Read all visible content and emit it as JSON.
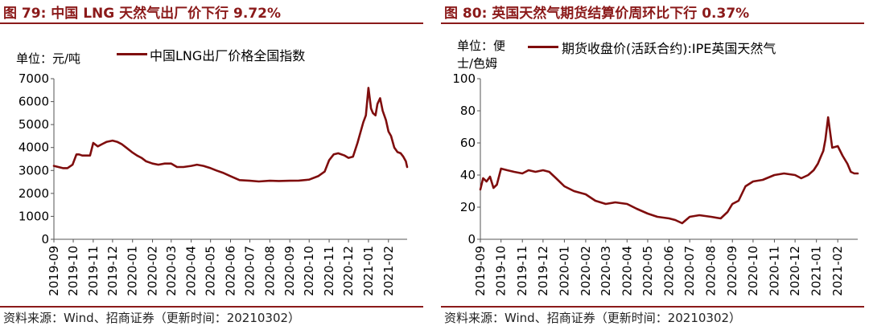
{
  "source": "资料来源：Wind、招商证券（更新时间：20210302）",
  "charts": [
    {
      "title": "图 79:  中国 LNG 天然气出厂价下行 9.72%",
      "unit_label": "单位：元/吨",
      "legend": "中国LNG出厂价格全国指数",
      "color": "#7f0d0d"
    },
    {
      "title": "图 80:  英国天然气期货结算价周环比下行 0.37%",
      "unit_label_line1": "单位：便",
      "unit_label_line2": "士/色姆",
      "legend": "期货收盘价(活跃合约):IPE英国天然气",
      "color": "#7f0d0d"
    }
  ],
  "chart_data": [
    {
      "type": "line",
      "title": "图 79:  中国 LNG 天然气出厂价下行 9.72%",
      "ylabel": "单位：元/吨",
      "ylim": [
        0,
        7000
      ],
      "yticks": [
        0,
        1000,
        2000,
        3000,
        4000,
        5000,
        6000,
        7000
      ],
      "xlim": [
        "2019-09-01",
        "2021-03-02"
      ],
      "xticks": [
        "2019-09",
        "2019-10",
        "2019-11",
        "2019-12",
        "2020-01",
        "2020-02",
        "2020-03",
        "2020-04",
        "2020-05",
        "2020-06",
        "2020-07",
        "2020-08",
        "2020-09",
        "2020-10",
        "2020-11",
        "2020-12",
        "2021-01",
        "2021-02"
      ],
      "legend_position": "top",
      "grid": false,
      "series": [
        {
          "name": "中国LNG出厂价格全国指数",
          "x": [
            "2019-09-01",
            "2019-09-08",
            "2019-09-15",
            "2019-09-22",
            "2019-09-30",
            "2019-10-06",
            "2019-10-10",
            "2019-10-15",
            "2019-10-20",
            "2019-10-27",
            "2019-11-01",
            "2019-11-08",
            "2019-11-15",
            "2019-11-22",
            "2019-12-01",
            "2019-12-08",
            "2019-12-15",
            "2019-12-22",
            "2019-12-31",
            "2020-01-08",
            "2020-01-15",
            "2020-01-22",
            "2020-02-01",
            "2020-02-10",
            "2020-02-20",
            "2020-03-01",
            "2020-03-10",
            "2020-03-20",
            "2020-04-01",
            "2020-04-10",
            "2020-04-20",
            "2020-05-01",
            "2020-05-10",
            "2020-05-20",
            "2020-06-01",
            "2020-06-15",
            "2020-07-01",
            "2020-07-15",
            "2020-08-01",
            "2020-08-15",
            "2020-09-01",
            "2020-09-15",
            "2020-10-01",
            "2020-10-15",
            "2020-10-25",
            "2020-11-01",
            "2020-11-08",
            "2020-11-15",
            "2020-11-25",
            "2020-12-01",
            "2020-12-08",
            "2020-12-15",
            "2020-12-20",
            "2020-12-24",
            "2020-12-28",
            "2021-01-01",
            "2021-01-05",
            "2021-01-08",
            "2021-01-12",
            "2021-01-15",
            "2021-01-19",
            "2021-01-23",
            "2021-01-28",
            "2021-02-01",
            "2021-02-05",
            "2021-02-10",
            "2021-02-15",
            "2021-02-20",
            "2021-02-24",
            "2021-02-28",
            "2021-03-02"
          ],
          "values": [
            3200,
            3150,
            3100,
            3100,
            3250,
            3700,
            3700,
            3650,
            3650,
            3650,
            4200,
            4050,
            4150,
            4250,
            4300,
            4250,
            4150,
            4000,
            3800,
            3650,
            3550,
            3400,
            3300,
            3250,
            3300,
            3300,
            3150,
            3150,
            3200,
            3250,
            3200,
            3100,
            3000,
            2900,
            2750,
            2580,
            2550,
            2520,
            2550,
            2540,
            2550,
            2560,
            2600,
            2750,
            2950,
            3450,
            3700,
            3750,
            3650,
            3550,
            3600,
            4200,
            4700,
            5100,
            5400,
            6600,
            5700,
            5500,
            5400,
            5900,
            6150,
            5600,
            5200,
            4700,
            4500,
            4000,
            3800,
            3750,
            3600,
            3400,
            3150
          ]
        }
      ]
    },
    {
      "type": "line",
      "title": "图 80:  英国天然气期货结算价周环比下行 0.37%",
      "ylabel": "单位：便士/色姆",
      "ylim": [
        0,
        100
      ],
      "yticks": [
        0,
        20,
        40,
        60,
        80,
        100
      ],
      "xlim": [
        "2019-09-01",
        "2021-03-02"
      ],
      "xticks": [
        "2019-09",
        "2019-10",
        "2019-11",
        "2019-12",
        "2020-01",
        "2020-02",
        "2020-03",
        "2020-04",
        "2020-05",
        "2020-06",
        "2020-07",
        "2020-08",
        "2020-09",
        "2020-10",
        "2020-11",
        "2020-12",
        "2021-01",
        "2021-02"
      ],
      "legend_position": "top",
      "grid": false,
      "series": [
        {
          "name": "期货收盘价(活跃合约):IPE英国天然气",
          "x": [
            "2019-09-01",
            "2019-09-05",
            "2019-09-10",
            "2019-09-15",
            "2019-09-20",
            "2019-09-25",
            "2019-10-01",
            "2019-10-10",
            "2019-10-20",
            "2019-11-01",
            "2019-11-10",
            "2019-11-20",
            "2019-12-01",
            "2019-12-10",
            "2019-12-20",
            "2020-01-01",
            "2020-01-15",
            "2020-02-01",
            "2020-02-15",
            "2020-03-01",
            "2020-03-15",
            "2020-04-01",
            "2020-04-15",
            "2020-05-01",
            "2020-05-15",
            "2020-06-01",
            "2020-06-10",
            "2020-06-20",
            "2020-07-01",
            "2020-07-15",
            "2020-08-01",
            "2020-08-15",
            "2020-08-25",
            "2020-09-01",
            "2020-09-10",
            "2020-09-20",
            "2020-10-01",
            "2020-10-15",
            "2020-11-01",
            "2020-11-15",
            "2020-12-01",
            "2020-12-10",
            "2020-12-20",
            "2020-12-28",
            "2021-01-03",
            "2021-01-08",
            "2021-01-11",
            "2021-01-14",
            "2021-01-18",
            "2021-01-24",
            "2021-02-01",
            "2021-02-08",
            "2021-02-15",
            "2021-02-20",
            "2021-02-25",
            "2021-03-02"
          ],
          "values": [
            31,
            38,
            36,
            39,
            32,
            34,
            44,
            43,
            42,
            41,
            43,
            42,
            43,
            42,
            38,
            33,
            30,
            28,
            24,
            22,
            23,
            22,
            19,
            16,
            14,
            13,
            12,
            10,
            14,
            15,
            14,
            13,
            17,
            22,
            24,
            33,
            36,
            37,
            40,
            41,
            40,
            38,
            40,
            43,
            47,
            52,
            55,
            62,
            76,
            57,
            58,
            52,
            47,
            42,
            41,
            41
          ]
        }
      ]
    }
  ]
}
